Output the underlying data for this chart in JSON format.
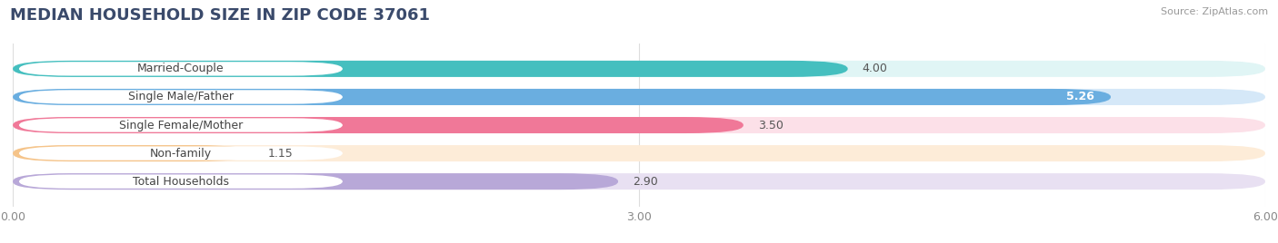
{
  "title": "MEDIAN HOUSEHOLD SIZE IN ZIP CODE 37061",
  "source": "Source: ZipAtlas.com",
  "categories": [
    "Married-Couple",
    "Single Male/Father",
    "Single Female/Mother",
    "Non-family",
    "Total Households"
  ],
  "values": [
    4.0,
    5.26,
    3.5,
    1.15,
    2.9
  ],
  "bar_colors": [
    "#45bfbf",
    "#6aaee0",
    "#f07898",
    "#f5c48a",
    "#b8a8d8"
  ],
  "bar_bg_colors": [
    "#e0f5f5",
    "#d5e8f8",
    "#fce0e8",
    "#fdecd8",
    "#e8e0f2"
  ],
  "xlim": [
    0,
    6.0
  ],
  "xticks": [
    0.0,
    3.0,
    6.0
  ],
  "xtick_labels": [
    "0.00",
    "3.00",
    "6.00"
  ],
  "label_fontsize": 9,
  "value_fontsize": 9,
  "title_fontsize": 13,
  "background_color": "#ffffff"
}
